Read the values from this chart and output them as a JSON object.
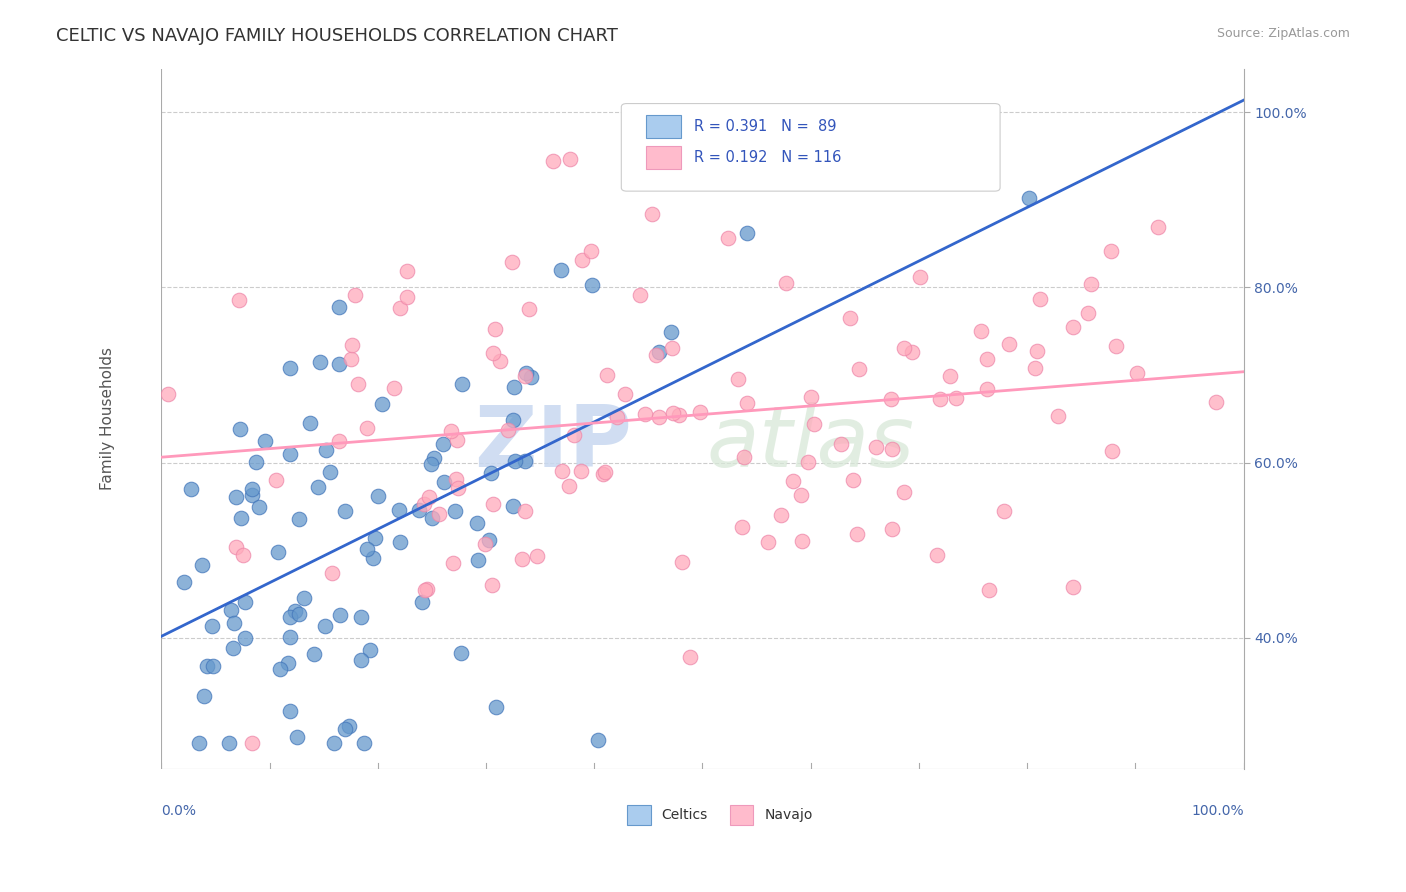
{
  "title": "CELTIC VS NAVAJO FAMILY HOUSEHOLDS CORRELATION CHART",
  "source_text": "Source: ZipAtlas.com",
  "ylabel": "Family Households",
  "right_yticks": [
    "40.0%",
    "60.0%",
    "80.0%",
    "100.0%"
  ],
  "right_ytick_values": [
    0.4,
    0.6,
    0.8,
    1.0
  ],
  "legend_label_celtics": "Celtics",
  "legend_label_navajo": "Navajo",
  "celtics_color": "#6699cc",
  "navajo_color": "#ffaabb",
  "celtics_edge_color": "#4477bb",
  "navajo_edge_color": "#ee88aa",
  "celtics_line_color": "#3366cc",
  "navajo_line_color": "#ff99bb",
  "watermark_zip": "ZIP",
  "watermark_atlas": "atlas",
  "background_color": "#ffffff",
  "axis_color": "#aaaaaa",
  "grid_color": "#cccccc",
  "R_celtics": 0.391,
  "N_celtics": 89,
  "R_navajo": 0.192,
  "N_navajo": 116,
  "celtics_seed": 42,
  "navajo_seed": 123,
  "xmin": 0.0,
  "xmax": 1.0,
  "ymin": 0.25,
  "ymax": 1.05
}
